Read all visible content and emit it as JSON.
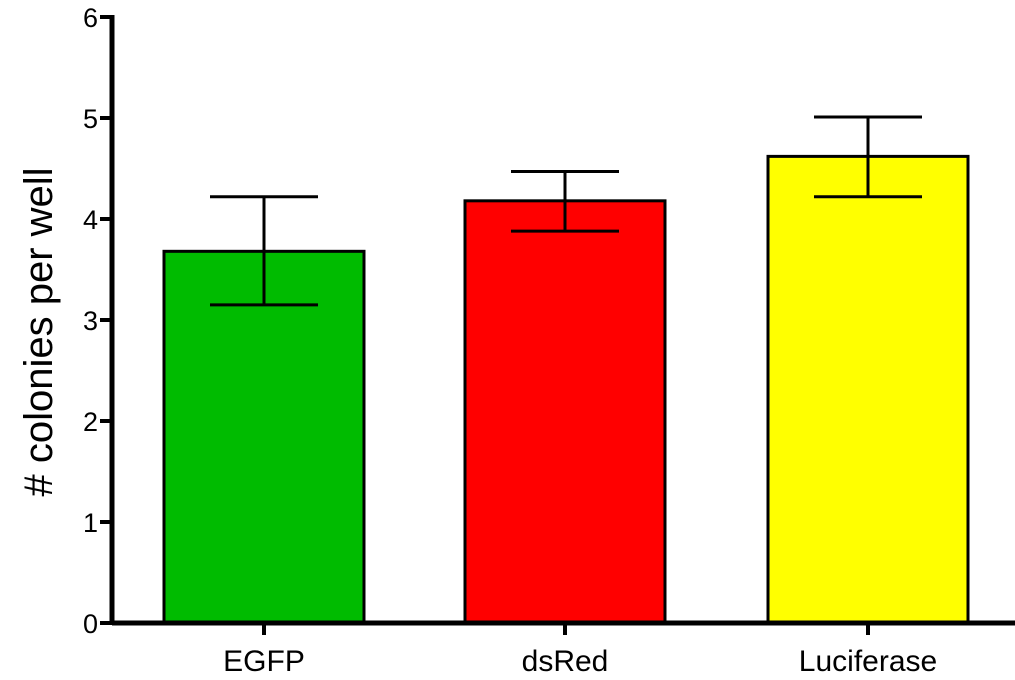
{
  "chart_data": {
    "type": "bar",
    "title": "",
    "xlabel": "",
    "ylabel": "# colonies per well",
    "categories": [
      "EGFP",
      "dsRed",
      "Luciferase"
    ],
    "values": [
      3.68,
      4.18,
      4.62
    ],
    "error_low": [
      3.15,
      3.88,
      4.22
    ],
    "error_high": [
      4.22,
      4.47,
      5.01
    ],
    "colors": [
      "#00bb00",
      "#ff0000",
      "#ffff00"
    ],
    "ylim": [
      0,
      6
    ],
    "yticks": [
      "0",
      "1",
      "2",
      "3",
      "4",
      "5",
      "6"
    ],
    "grid": false,
    "legend": "none"
  }
}
